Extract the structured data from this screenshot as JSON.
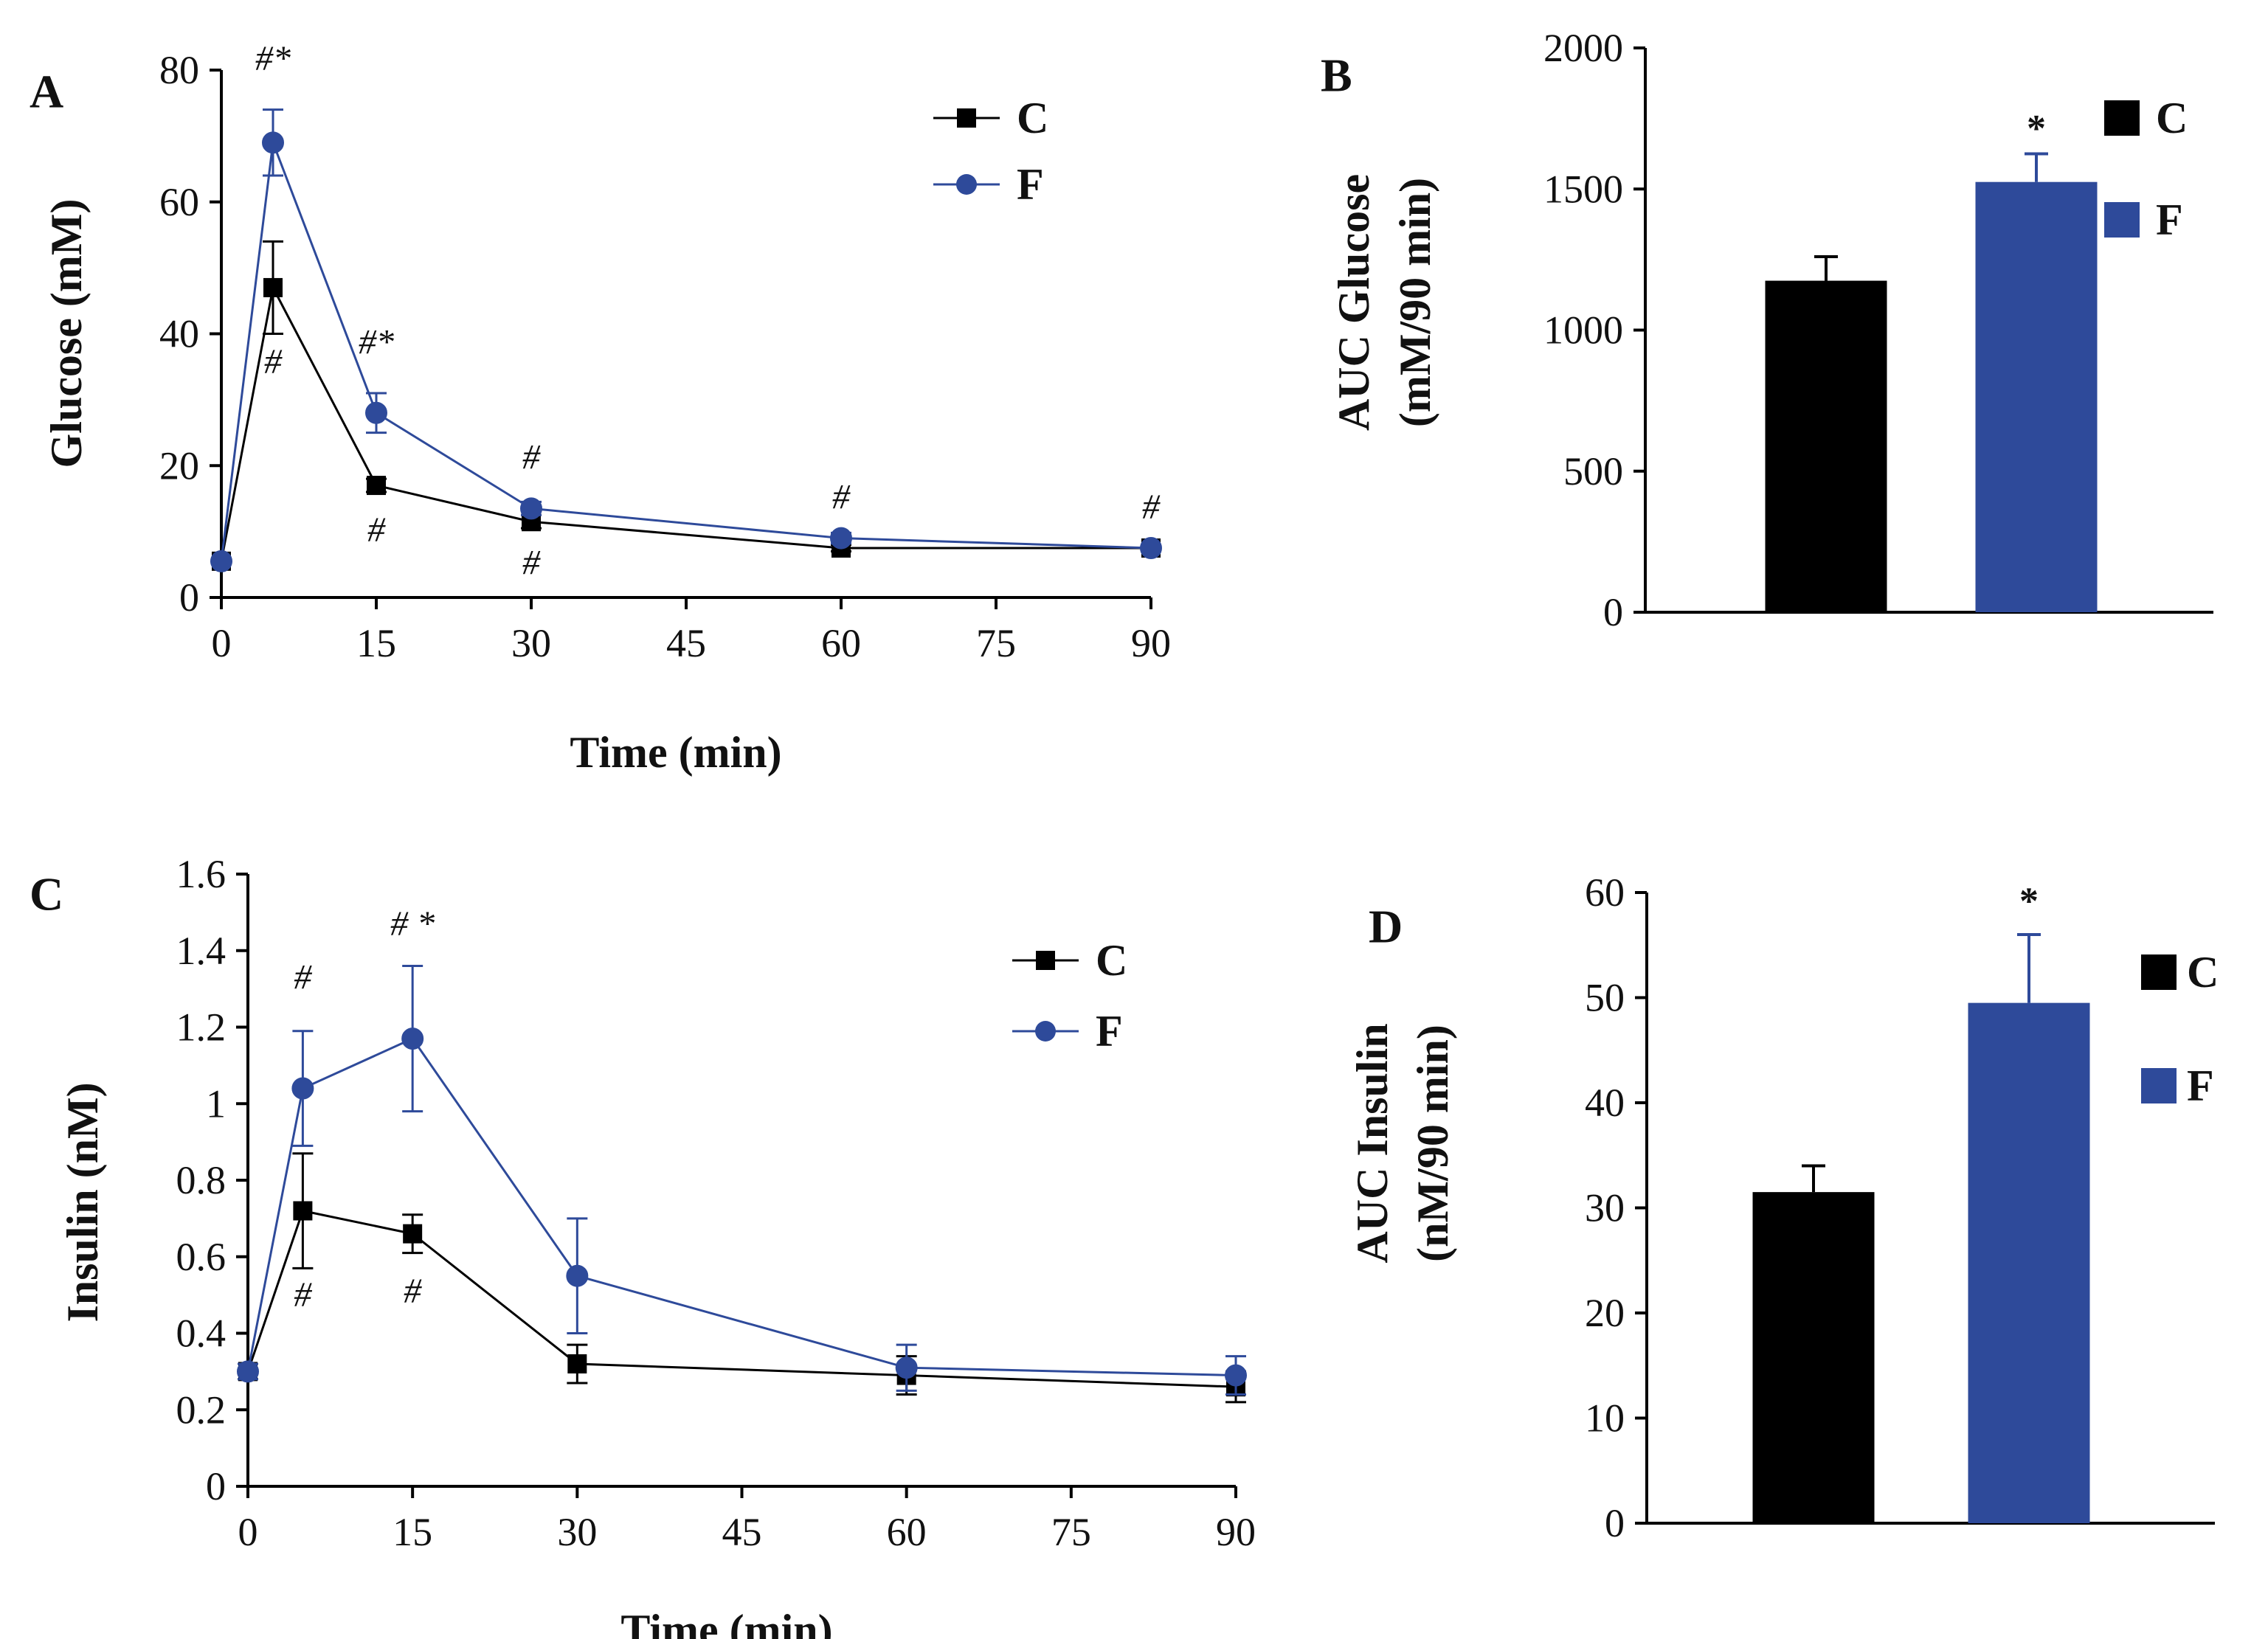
{
  "colors": {
    "C": "#000000",
    "F": "#2E4A9A",
    "axis": "#000000"
  },
  "chart_data": [
    {
      "panel": "A",
      "type": "line",
      "xlabel": "Time (min)",
      "ylabel": "Glucose (mM)",
      "xlim": [
        0,
        90
      ],
      "ylim": [
        0,
        80
      ],
      "xticks": [
        0,
        15,
        30,
        45,
        60,
        75,
        90
      ],
      "xtick_labels": [
        "0",
        "15",
        "30",
        "45",
        "60",
        "75",
        "90"
      ],
      "yticks": [
        0,
        20,
        40,
        60,
        80
      ],
      "ytick_labels": [
        "0",
        "20",
        "40",
        "60",
        "80"
      ],
      "legend": [
        "C",
        "F"
      ],
      "legend_position": "top-right",
      "series": [
        {
          "name": "C",
          "marker": "square",
          "x": [
            0,
            5,
            15,
            30,
            60,
            90
          ],
          "y": [
            5.5,
            47,
            17,
            11.5,
            7.5,
            7.5
          ],
          "err": [
            0,
            7,
            1,
            1,
            0.5,
            0.5
          ]
        },
        {
          "name": "F",
          "marker": "circle",
          "x": [
            0,
            5,
            15,
            30,
            60,
            90
          ],
          "y": [
            5.5,
            69,
            28,
            13.5,
            9,
            7.5
          ],
          "err": [
            0,
            5,
            3,
            1,
            0.8,
            0.5
          ]
        }
      ],
      "annotations": [
        {
          "text": "#*",
          "x": 5,
          "y": 80,
          "kind": "mark"
        },
        {
          "text": "#",
          "x": 5,
          "y": 34,
          "kind": "mark"
        },
        {
          "text": "#*",
          "x": 15,
          "y": 37,
          "kind": "mark"
        },
        {
          "text": "#",
          "x": 15,
          "y": 8.5,
          "kind": "mark"
        },
        {
          "text": "#",
          "x": 30,
          "y": 19.5,
          "kind": "mark"
        },
        {
          "text": "#",
          "x": 30,
          "y": 3.5,
          "kind": "mark"
        },
        {
          "text": "#",
          "x": 60,
          "y": 13.5,
          "kind": "mark"
        },
        {
          "text": "#",
          "x": 90,
          "y": 12,
          "kind": "mark"
        }
      ]
    },
    {
      "panel": "B",
      "type": "bar",
      "ylabel": "AUC Glucose",
      "ylabel2": "(mM/90 min)",
      "categories": [
        "C",
        "F"
      ],
      "values": [
        1175,
        1525
      ],
      "err": [
        85,
        100
      ],
      "ylim": [
        0,
        2000
      ],
      "yticks": [
        0,
        500,
        1000,
        1500,
        2000
      ],
      "ytick_labels": [
        "0",
        "500",
        "1000",
        "1500",
        "2000"
      ],
      "legend": [
        "C",
        "F"
      ],
      "legend_position": "top-right",
      "annotations": [
        {
          "text": "*",
          "bar": 1,
          "y": 1670,
          "kind": "star"
        }
      ]
    },
    {
      "panel": "C",
      "type": "line",
      "xlabel": "Time (min)",
      "ylabel": "Insulin (nM)",
      "xlim": [
        0,
        90
      ],
      "ylim": [
        0,
        1.6
      ],
      "xticks": [
        0,
        15,
        30,
        45,
        60,
        75,
        90
      ],
      "xtick_labels": [
        "0",
        "15",
        "30",
        "45",
        "60",
        "75",
        "90"
      ],
      "yticks": [
        0,
        0.2,
        0.4,
        0.6,
        0.8,
        1.0,
        1.2,
        1.4,
        1.6
      ],
      "ytick_labels": [
        "0",
        "0.2",
        "0.4",
        "0.6",
        "0.8",
        "1",
        "1.2",
        "1.4",
        "1.6"
      ],
      "legend": [
        "C",
        "F"
      ],
      "legend_position": "top-right",
      "series": [
        {
          "name": "C",
          "marker": "square",
          "x": [
            0,
            5,
            15,
            30,
            60,
            90
          ],
          "y": [
            0.3,
            0.72,
            0.66,
            0.32,
            0.29,
            0.26
          ],
          "err": [
            0.02,
            0.15,
            0.05,
            0.05,
            0.05,
            0.04
          ]
        },
        {
          "name": "F",
          "marker": "circle",
          "x": [
            0,
            5,
            15,
            30,
            60,
            90
          ],
          "y": [
            0.3,
            1.04,
            1.17,
            0.55,
            0.31,
            0.29
          ],
          "err": [
            0.02,
            0.15,
            0.19,
            0.15,
            0.06,
            0.05
          ]
        }
      ],
      "annotations": [
        {
          "text": "#",
          "x": 5,
          "y": 1.3,
          "kind": "mark"
        },
        {
          "text": "#",
          "x": 5,
          "y": 0.47,
          "kind": "mark"
        },
        {
          "text": "# *",
          "x": 15,
          "y": 1.44,
          "kind": "mark"
        },
        {
          "text": "#",
          "x": 15,
          "y": 0.48,
          "kind": "mark"
        }
      ]
    },
    {
      "panel": "D",
      "type": "bar",
      "ylabel": "AUC Insulin",
      "ylabel2": "(nM/90 min)",
      "categories": [
        "C",
        "F"
      ],
      "values": [
        31.5,
        49.5
      ],
      "err": [
        2.5,
        6.5
      ],
      "ylim": [
        0,
        60
      ],
      "yticks": [
        0,
        10,
        20,
        30,
        40,
        50,
        60
      ],
      "ytick_labels": [
        "0",
        "10",
        "20",
        "30",
        "40",
        "50",
        "60"
      ],
      "legend": [
        "C",
        "F"
      ],
      "legend_position": "top-right",
      "annotations": [
        {
          "text": "*",
          "bar": 1,
          "y": 58,
          "kind": "star"
        }
      ]
    }
  ]
}
